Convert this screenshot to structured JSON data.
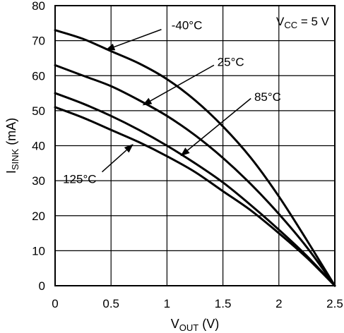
{
  "chart_data": {
    "type": "line",
    "title": "",
    "xlabel": {
      "main": "V",
      "sub": "OUT",
      "unit": " (V)"
    },
    "ylabel": {
      "main": "I",
      "sub": "SINK",
      "unit": " (mA)"
    },
    "xlim": [
      0,
      2.5
    ],
    "ylim": [
      0,
      80
    ],
    "xticks": [
      0,
      0.5,
      1,
      1.5,
      2,
      2.5
    ],
    "xtick_labels": [
      "0",
      "0.5",
      "1",
      "1.5",
      "2",
      "2.5"
    ],
    "yticks": [
      0,
      10,
      20,
      30,
      40,
      50,
      60,
      70,
      80
    ],
    "ytick_labels": [
      "0",
      "10",
      "20",
      "30",
      "40",
      "50",
      "60",
      "70",
      "80"
    ],
    "grid": true,
    "condition": {
      "main": "V",
      "sub": "CC",
      "rest": " = 5 V"
    },
    "series": [
      {
        "name": "-40°C",
        "x": [
          0,
          0.25,
          0.5,
          0.75,
          1,
          1.25,
          1.5,
          1.75,
          2,
          2.25,
          2.5
        ],
        "y": [
          73,
          70.5,
          67,
          63.5,
          59,
          53,
          45.5,
          36.5,
          25.5,
          13,
          0
        ]
      },
      {
        "name": "25°C",
        "x": [
          0,
          0.25,
          0.5,
          0.75,
          1,
          1.25,
          1.5,
          1.75,
          2,
          2.25,
          2.5
        ],
        "y": [
          63,
          60,
          57,
          53,
          48.5,
          43,
          36.5,
          29,
          20.5,
          11,
          0
        ]
      },
      {
        "name": "85°C",
        "x": [
          0,
          0.25,
          0.5,
          0.75,
          1,
          1.25,
          1.5,
          1.75,
          2,
          2.25,
          2.5
        ],
        "y": [
          55,
          52,
          48.5,
          44.5,
          40,
          35,
          29.5,
          23,
          16,
          8.5,
          0
        ]
      },
      {
        "name": "125°C",
        "x": [
          0,
          0.25,
          0.5,
          0.75,
          1,
          1.25,
          1.5,
          1.75,
          2,
          2.25,
          2.5
        ],
        "y": [
          51,
          48,
          44.5,
          41,
          37,
          32.5,
          27,
          21.5,
          15,
          8,
          0
        ]
      }
    ],
    "annotations": [
      {
        "series": "-40°C",
        "label": "-40°C",
        "label_x": 1.04,
        "label_y": 74.5,
        "from": [
          0.95,
          73.2
        ],
        "to": [
          0.45,
          67.3
        ]
      },
      {
        "series": "25°C",
        "label": "25°C",
        "label_x": 1.45,
        "label_y": 64,
        "from": [
          1.42,
          63
        ],
        "to": [
          0.78,
          51.5
        ]
      },
      {
        "series": "85°C",
        "label": "85°C",
        "label_x": 1.78,
        "label_y": 54,
        "from": [
          1.75,
          53.5
        ],
        "to": [
          1.12,
          37
        ]
      },
      {
        "series": "125°C",
        "label": "125°C",
        "label_x": 0.07,
        "label_y": 30.5,
        "from": [
          0.42,
          32.5
        ],
        "to": [
          0.7,
          40.5
        ]
      }
    ]
  }
}
